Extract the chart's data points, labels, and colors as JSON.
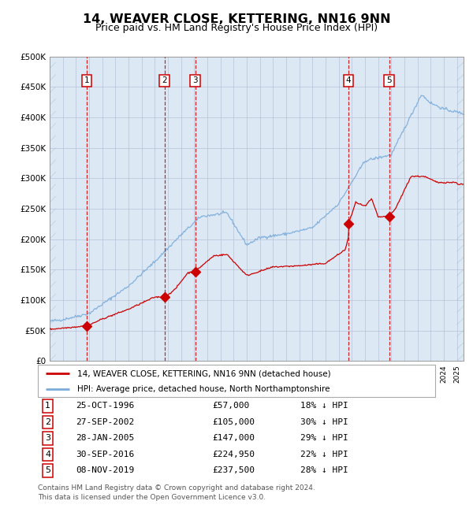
{
  "title": "14, WEAVER CLOSE, KETTERING, NN16 9NN",
  "subtitle": "Price paid vs. HM Land Registry's House Price Index (HPI)",
  "background_color": "#dce9f5",
  "sale_dates_num": [
    1996.81,
    2002.74,
    2005.07,
    2016.75,
    2019.84
  ],
  "sale_prices": [
    57000,
    105000,
    147000,
    224950,
    237500
  ],
  "sale_labels": [
    "1",
    "2",
    "3",
    "4",
    "5"
  ],
  "sale_info": [
    {
      "num": "1",
      "date": "25-OCT-1996",
      "price": "£57,000",
      "pct": "18% ↓ HPI"
    },
    {
      "num": "2",
      "date": "27-SEP-2002",
      "price": "£105,000",
      "pct": "30% ↓ HPI"
    },
    {
      "num": "3",
      "date": "28-JAN-2005",
      "price": "£147,000",
      "pct": "29% ↓ HPI"
    },
    {
      "num": "4",
      "date": "30-SEP-2016",
      "price": "£224,950",
      "pct": "22% ↓ HPI"
    },
    {
      "num": "5",
      "date": "08-NOV-2019",
      "price": "£237,500",
      "pct": "28% ↓ HPI"
    }
  ],
  "red_line_color": "#cc0000",
  "blue_line_color": "#7aabdb",
  "marker_color": "#cc0000",
  "vline_color": "#cc0000",
  "box_color": "#cc0000",
  "ylim": [
    0,
    500000
  ],
  "yticks": [
    0,
    50000,
    100000,
    150000,
    200000,
    250000,
    300000,
    350000,
    400000,
    450000,
    500000
  ],
  "xmin": 1994.0,
  "xmax": 2025.5,
  "footer_line1": "Contains HM Land Registry data © Crown copyright and database right 2024.",
  "footer_line2": "This data is licensed under the Open Government Licence v3.0.",
  "legend_label_red": "14, WEAVER CLOSE, KETTERING, NN16 9NN (detached house)",
  "legend_label_blue": "HPI: Average price, detached house, North Northamptonshire"
}
